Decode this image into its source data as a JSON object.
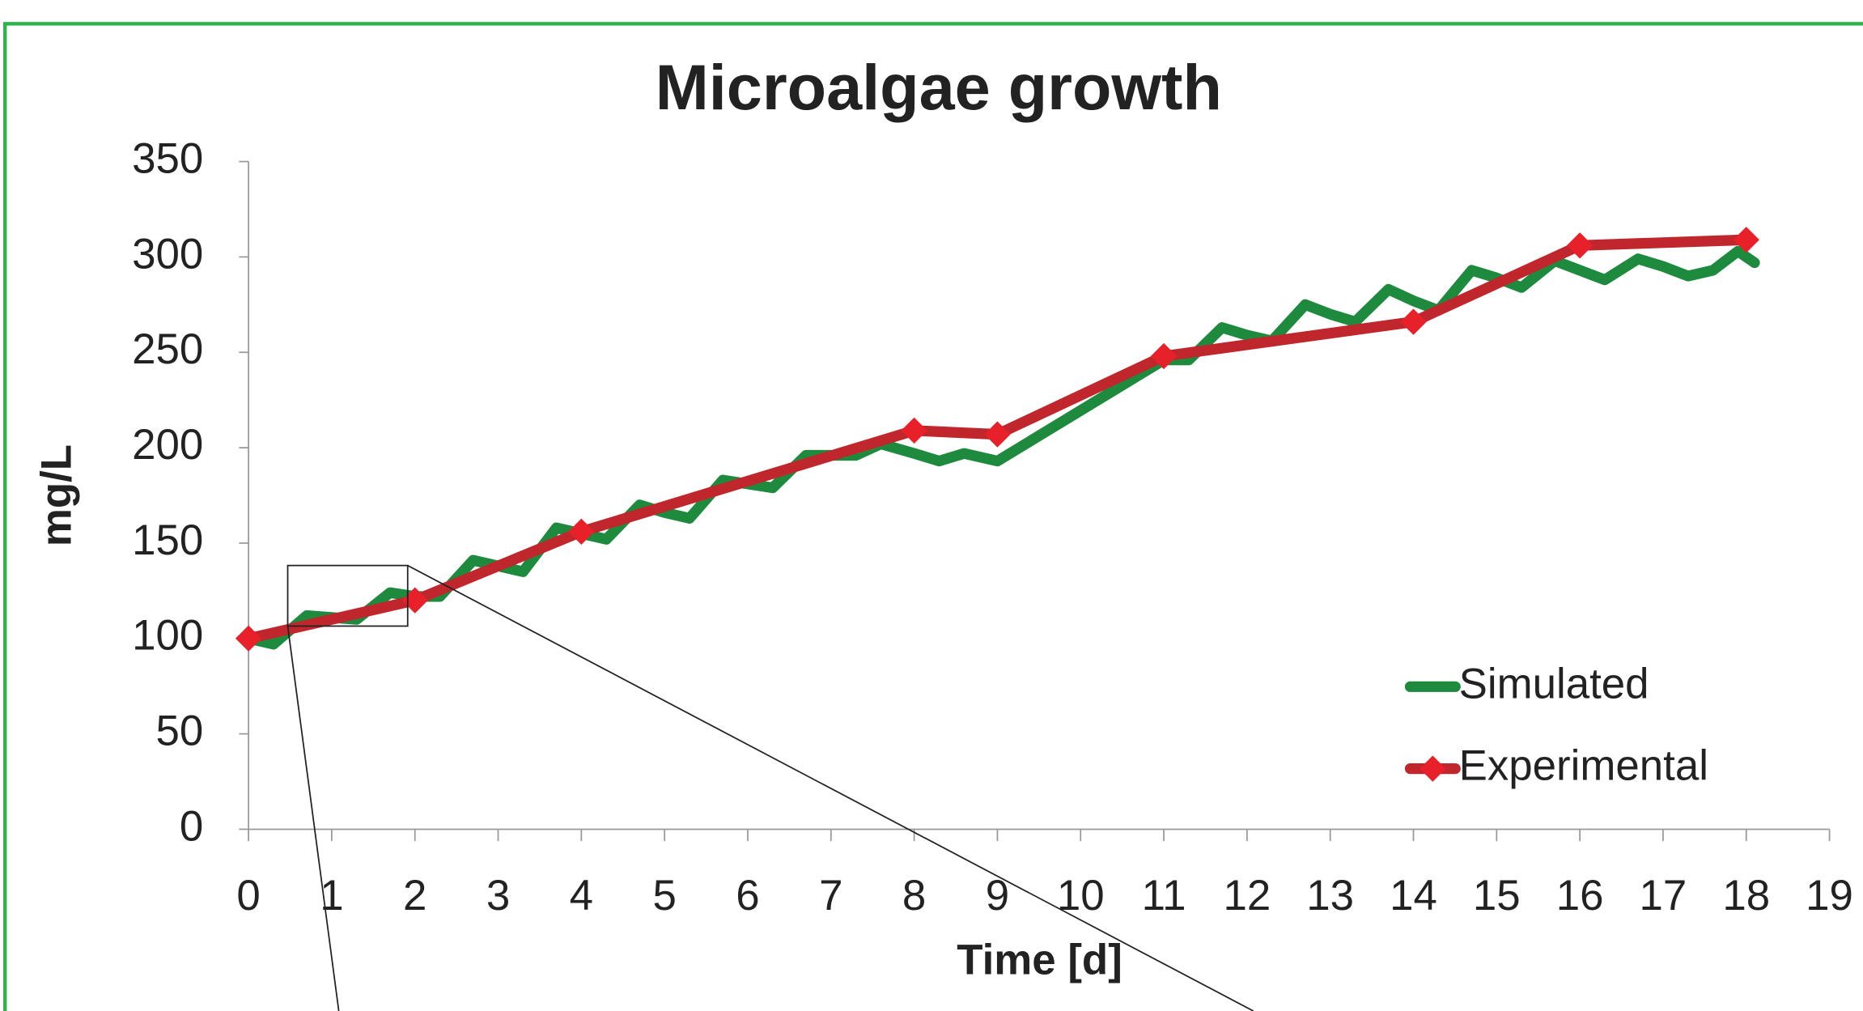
{
  "chart_data": {
    "type": "line",
    "title": "Microalgae growth",
    "x_label": "Time [d]",
    "y_label": "mg/L",
    "xlim": [
      0,
      19
    ],
    "xticks": [
      0,
      1,
      2,
      3,
      4,
      5,
      6,
      7,
      8,
      9,
      10,
      11,
      12,
      13,
      14,
      15,
      16,
      17,
      18,
      19
    ],
    "ylim": [
      0,
      350
    ],
    "yticks": [
      0,
      50,
      100,
      150,
      200,
      250,
      300,
      350
    ],
    "grid": false,
    "legend": "right",
    "series": [
      {
        "name": "Simulated",
        "color": "#1e8a3e",
        "marker": "none",
        "x": [
          0,
          0.3,
          0.7,
          1,
          1.3,
          1.7,
          2,
          2.3,
          2.7,
          3,
          3.3,
          3.7,
          4,
          4.3,
          4.7,
          5,
          5.3,
          5.7,
          6,
          6.3,
          6.7,
          7,
          7.3,
          7.6,
          8,
          8.3,
          8.6,
          9,
          11,
          11.3,
          11.7,
          12,
          12.3,
          12.7,
          13,
          13.3,
          13.7,
          14,
          14.3,
          14.7,
          15,
          15.3,
          15.7,
          16,
          16.3,
          16.7,
          17,
          17.3,
          17.6,
          17.9,
          18,
          18.1
        ],
        "values": [
          100,
          97,
          112,
          111,
          110,
          124,
          122,
          122,
          141,
          138,
          135,
          158,
          155,
          152,
          170,
          166,
          163,
          183,
          181,
          179,
          196,
          196,
          196,
          202,
          197,
          193,
          197,
          193,
          246,
          246,
          263,
          259,
          256,
          275,
          270,
          266,
          283,
          277,
          272,
          293,
          289,
          284,
          298,
          293,
          288,
          299,
          295,
          290,
          293,
          303,
          300,
          297
        ]
      },
      {
        "name": "Experimental",
        "color": "#c0272d",
        "marker": "diamond",
        "marker_color": "#e8202a",
        "x": [
          0,
          2,
          4,
          8,
          9,
          11,
          14,
          16,
          18
        ],
        "values": [
          100,
          120,
          156,
          209,
          207,
          248,
          266,
          306,
          309
        ]
      }
    ]
  }
}
